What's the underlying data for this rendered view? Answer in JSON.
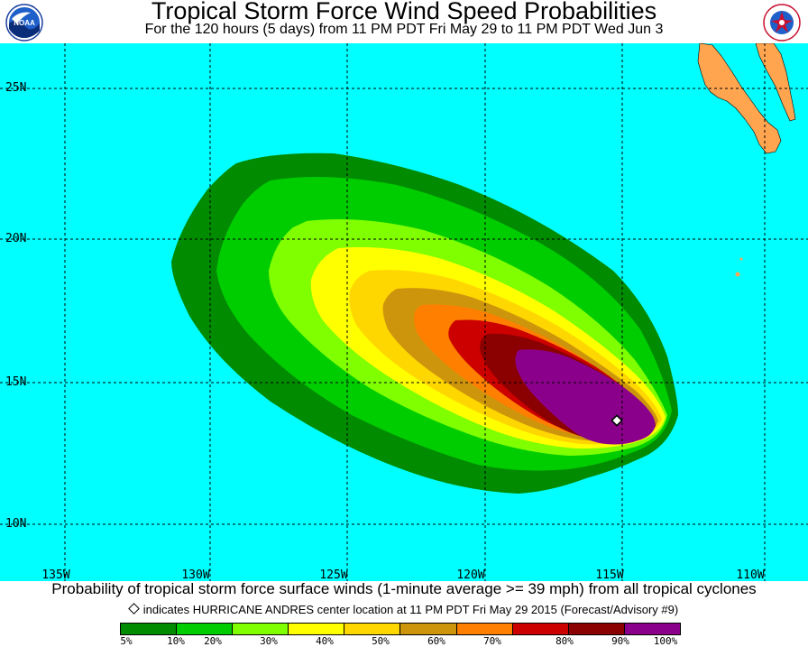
{
  "header": {
    "title": "Tropical Storm Force Wind Speed Probabilities",
    "subtitle": "For the 120 hours (5 days) from 11 PM PDT Fri May 29 to 11 PM PDT Wed Jun 3",
    "logo_left": "NOAA",
    "logo_right": "National Weather Service"
  },
  "map": {
    "ocean_color": "#00ffff",
    "land_color": "#ffa54f",
    "lat_labels": [
      "25N",
      "20N",
      "15N",
      "10N"
    ],
    "lon_labels": [
      "135W",
      "130W",
      "125W",
      "120W",
      "115W",
      "110W"
    ],
    "storm_marker": "diamond"
  },
  "caption": {
    "main": "Probability of tropical storm force surface winds (1-minute average >= 39 mph) from all tropical cyclones",
    "note": "indicates HURRICANE ANDRES center location at 11 PM PDT Fri May 29 2015 (Forecast/Advisory #9)"
  },
  "legend": {
    "colors": [
      "#008b00",
      "#00cd00",
      "#7fff00",
      "#ffff00",
      "#ffd700",
      "#cd950c",
      "#ff7f00",
      "#cd0000",
      "#8b0000",
      "#8b008b"
    ],
    "labels": [
      "5%",
      "10%",
      "20%",
      "30%",
      "40%",
      "50%",
      "60%",
      "70%",
      "80%",
      "90%",
      "100%"
    ]
  }
}
